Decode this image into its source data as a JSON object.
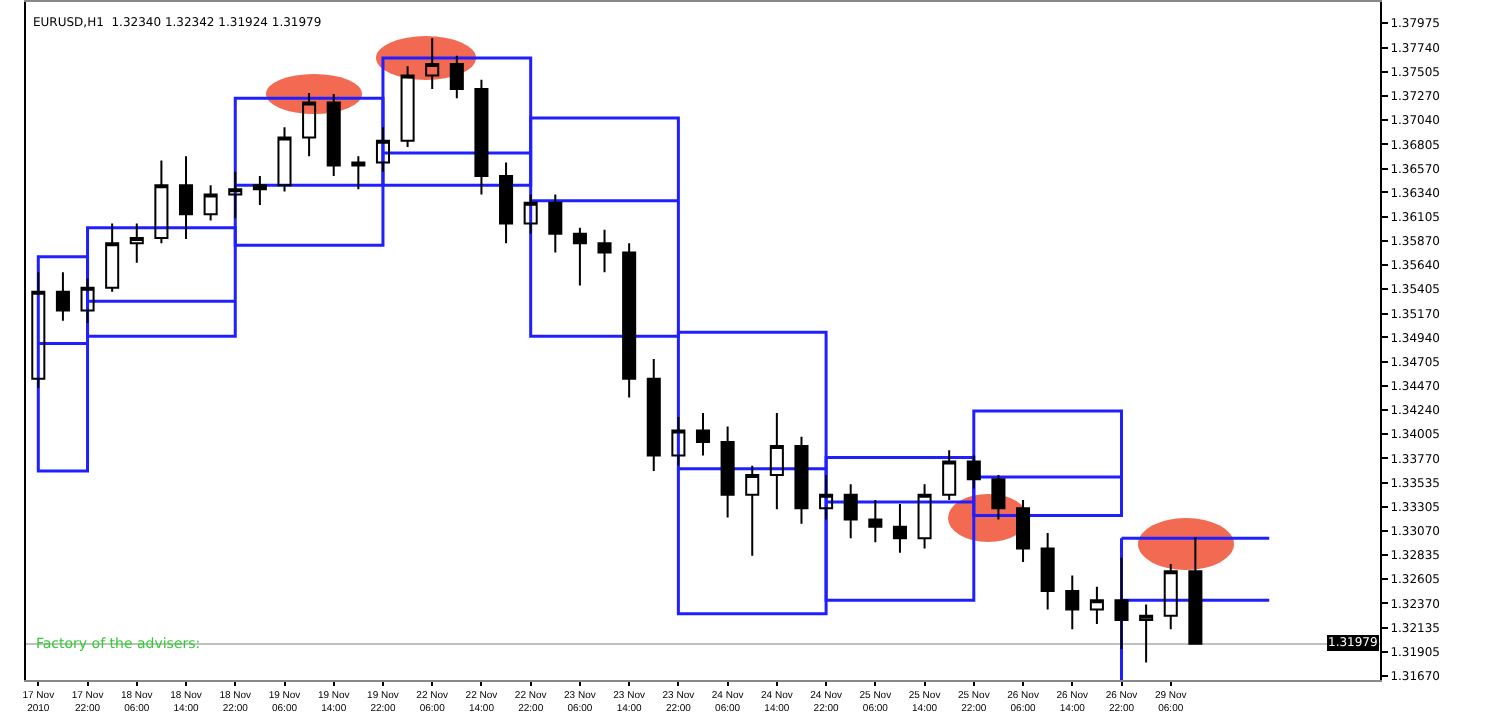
{
  "chart_data": {
    "type": "candlestick",
    "title": "EURUSD,H1  1.32340 1.32342 1.31924 1.31979",
    "categories": [
      "17 Nov 2010",
      null,
      "17 Nov 22:00",
      null,
      "18 Nov 06:00",
      null,
      "18 Nov 14:00",
      null,
      "18 Nov 22:00",
      null,
      "19 Nov 06:00",
      null,
      "19 Nov 14:00",
      null,
      "19 Nov 22:00",
      null,
      "22 Nov 06:00",
      null,
      "22 Nov 14:00",
      null,
      "22 Nov 22:00",
      null,
      "23 Nov 06:00",
      null,
      "23 Nov 14:00",
      null,
      "23 Nov 22:00",
      null,
      "24 Nov 06:00",
      null,
      "24 Nov 14:00",
      null,
      "24 Nov 22:00",
      null,
      "25 Nov 06:00",
      null,
      "25 Nov 14:00",
      null,
      "25 Nov 22:00",
      null,
      "26 Nov 06:00",
      null,
      "26 Nov 14:00",
      null,
      "26 Nov 22:00",
      null,
      "29 Nov 06:00",
      null,
      null,
      null,
      null,
      null,
      null,
      null,
      null
    ],
    "ohlc": [
      [
        1.3454,
        1.3557,
        1.3445,
        1.3538
      ],
      [
        1.3538,
        1.3557,
        1.351,
        1.352
      ],
      [
        1.352,
        1.3551,
        1.3508,
        1.3542
      ],
      [
        1.3542,
        1.3604,
        1.3538,
        1.3585
      ],
      [
        1.3585,
        1.3604,
        1.3566,
        1.359
      ],
      [
        1.359,
        1.3665,
        1.3585,
        1.3641
      ],
      [
        1.3641,
        1.3669,
        1.3589,
        1.3613
      ],
      [
        1.3613,
        1.3641,
        1.3607,
        1.3632
      ],
      [
        1.3632,
        1.3654,
        1.3609,
        1.3637
      ],
      [
        1.3637,
        1.365,
        1.3622,
        1.3641
      ],
      [
        1.3641,
        1.3697,
        1.3635,
        1.3687
      ],
      [
        1.3687,
        1.373,
        1.3669,
        1.3721
      ],
      [
        1.3721,
        1.3729,
        1.365,
        1.366
      ],
      [
        1.366,
        1.3669,
        1.3637,
        1.3663
      ],
      [
        1.3663,
        1.3697,
        1.3654,
        1.3684
      ],
      [
        1.3684,
        1.3756,
        1.3678,
        1.3747
      ],
      [
        1.3747,
        1.3783,
        1.3734,
        1.3758
      ],
      [
        1.3758,
        1.3766,
        1.3725,
        1.3734
      ],
      [
        1.3734,
        1.3743,
        1.3632,
        1.365
      ],
      [
        1.365,
        1.3663,
        1.3585,
        1.3604
      ],
      [
        1.3604,
        1.3632,
        1.3594,
        1.3624
      ],
      [
        1.3624,
        1.3632,
        1.3576,
        1.3594
      ],
      [
        1.3594,
        1.36,
        1.3544,
        1.3585
      ],
      [
        1.3585,
        1.3598,
        1.3557,
        1.3576
      ],
      [
        1.3576,
        1.3585,
        1.3436,
        1.3454
      ],
      [
        1.3454,
        1.3473,
        1.3365,
        1.338
      ],
      [
        1.338,
        1.3417,
        1.337,
        1.3404
      ],
      [
        1.3404,
        1.3421,
        1.338,
        1.3393
      ],
      [
        1.3393,
        1.3408,
        1.332,
        1.3342
      ],
      [
        1.3342,
        1.337,
        1.3283,
        1.3361
      ],
      [
        1.3361,
        1.3421,
        1.3328,
        1.3389
      ],
      [
        1.3389,
        1.3398,
        1.3314,
        1.3329
      ],
      [
        1.3329,
        1.3361,
        1.3318,
        1.3342
      ],
      [
        1.3342,
        1.3352,
        1.33,
        1.3318
      ],
      [
        1.3318,
        1.3337,
        1.3296,
        1.3311
      ],
      [
        1.3311,
        1.3333,
        1.3286,
        1.33
      ],
      [
        1.33,
        1.3352,
        1.329,
        1.3342
      ],
      [
        1.3342,
        1.3385,
        1.3337,
        1.3374
      ],
      [
        1.3374,
        1.338,
        1.3348,
        1.3357
      ],
      [
        1.3357,
        1.3361,
        1.3318,
        1.3329
      ],
      [
        1.3329,
        1.3337,
        1.3277,
        1.329
      ],
      [
        1.329,
        1.3305,
        1.3231,
        1.3249
      ],
      [
        1.3249,
        1.3264,
        1.3212,
        1.3231
      ],
      [
        1.3231,
        1.3253,
        1.3217,
        1.324
      ],
      [
        1.324,
        1.3281,
        1.3193,
        1.3221
      ],
      [
        1.3221,
        1.3236,
        1.318,
        1.3225
      ],
      [
        1.3225,
        1.3275,
        1.3212,
        1.3268
      ],
      [
        1.3268,
        1.3301,
        1.3197,
        1.3198
      ],
      null,
      null,
      null,
      null,
      null,
      null,
      null
    ],
    "ylim": [
      1.3163,
      1.3818
    ],
    "yticks": [
      {
        "value": 1.37975,
        "label": "1.37975"
      },
      {
        "value": 1.3774,
        "label": "1.37740"
      },
      {
        "value": 1.37505,
        "label": "1.37505"
      },
      {
        "value": 1.3727,
        "label": "1.37270"
      },
      {
        "value": 1.3704,
        "label": "1.37040"
      },
      {
        "value": 1.36805,
        "label": "1.36805"
      },
      {
        "value": 1.3657,
        "label": "1.36570"
      },
      {
        "value": 1.3634,
        "label": "1.36340"
      },
      {
        "value": 1.36105,
        "label": "1.36105"
      },
      {
        "value": 1.3587,
        "label": "1.35870"
      },
      {
        "value": 1.3564,
        "label": "1.35640"
      },
      {
        "value": 1.35405,
        "label": "1.35405"
      },
      {
        "value": 1.3517,
        "label": "1.35170"
      },
      {
        "value": 1.3494,
        "label": "1.34940"
      },
      {
        "value": 1.34705,
        "label": "1.34705"
      },
      {
        "value": 1.3447,
        "label": "1.34470"
      },
      {
        "value": 1.3424,
        "label": "1.34240"
      },
      {
        "value": 1.34005,
        "label": "1.34005"
      },
      {
        "value": 1.3377,
        "label": "1.33770"
      },
      {
        "value": 1.33535,
        "label": "1.33535"
      },
      {
        "value": 1.33305,
        "label": "1.33305"
      },
      {
        "value": 1.3307,
        "label": "1.33070"
      },
      {
        "value": 1.32835,
        "label": "1.32835"
      },
      {
        "value": 1.32605,
        "label": "1.32605"
      },
      {
        "value": 1.3237,
        "label": "1.32370"
      },
      {
        "value": 1.32135,
        "label": "1.32135"
      },
      {
        "value": 1.31905,
        "label": "1.31905"
      },
      {
        "value": 1.3167,
        "label": "1.31670"
      }
    ],
    "series": [
      {
        "type": "line",
        "color": "#2020ff",
        "x": [
          "17 Nov 2010",
          "17 Nov 2010",
          "17 Nov 22:00",
          "17 Nov 22:00",
          "17 Nov 2010",
          "17 Nov 2010",
          "17 Nov 22:00"
        ],
        "values": [
          1.3488,
          1.3572,
          1.3572,
          1.3365,
          1.3365,
          1.3488,
          1.3488
        ]
      },
      {
        "type": "line",
        "color": "#2020ff",
        "x": [
          "17 Nov 22:00",
          "17 Nov 22:00",
          "18 Nov 22:00",
          "18 Nov 22:00",
          "17 Nov 22:00",
          "17 Nov 22:00",
          "18 Nov 22:00"
        ],
        "values": [
          1.3529,
          1.36,
          1.36,
          1.3495,
          1.3495,
          1.3529,
          1.3529
        ]
      },
      {
        "type": "line",
        "color": "#2020ff",
        "x": [
          "18 Nov 22:00",
          "18 Nov 22:00",
          "19 Nov 22:00",
          "19 Nov 22:00",
          "18 Nov 22:00",
          "18 Nov 22:00",
          "19 Nov 22:00"
        ],
        "values": [
          1.3641,
          1.3725,
          1.3725,
          1.3583,
          1.3583,
          1.3641,
          1.3641
        ]
      },
      {
        "type": "line",
        "color": "#2020ff",
        "x": [
          "19 Nov 22:00",
          "19 Nov 22:00",
          "22 Nov 22:00",
          "22 Nov 22:00",
          "19 Nov 22:00",
          "19 Nov 22:00",
          "22 Nov 22:00"
        ],
        "values": [
          1.3672,
          1.3764,
          1.3764,
          1.3641,
          1.3641,
          1.3672,
          1.3672
        ]
      },
      {
        "type": "line",
        "color": "#2020ff",
        "x": [
          "22 Nov 22:00",
          "22 Nov 22:00",
          "23 Nov 22:00",
          "23 Nov 22:00",
          "22 Nov 22:00",
          "22 Nov 22:00",
          "23 Nov 22:00"
        ],
        "values": [
          1.3626,
          1.3706,
          1.3706,
          1.3495,
          1.3495,
          1.3626,
          1.3626
        ]
      },
      {
        "type": "line",
        "color": "#2020ff",
        "x": [
          "23 Nov 22:00",
          "23 Nov 22:00",
          "24 Nov 22:00",
          "24 Nov 22:00",
          "23 Nov 22:00",
          "23 Nov 22:00",
          "24 Nov 22:00"
        ],
        "values": [
          1.3367,
          1.3499,
          1.3499,
          1.3227,
          1.3227,
          1.3367,
          1.3367
        ]
      },
      {
        "type": "line",
        "color": "#2020ff",
        "x": [
          "24 Nov 22:00",
          "24 Nov 22:00",
          "25 Nov 22:00",
          "25 Nov 22:00",
          "24 Nov 22:00",
          "24 Nov 22:00",
          "25 Nov 22:00"
        ],
        "values": [
          1.3335,
          1.3378,
          1.3378,
          1.324,
          1.324,
          1.3335,
          1.3335
        ]
      },
      {
        "type": "line",
        "color": "#2020ff",
        "x": [
          "25 Nov 22:00",
          "25 Nov 22:00",
          "26 Nov 22:00",
          "26 Nov 22:00",
          "25 Nov 22:00",
          "25 Nov 22:00",
          "26 Nov 22:00"
        ],
        "values": [
          1.3359,
          1.3423,
          1.3423,
          1.3322,
          1.3322,
          1.3359,
          1.3359
        ]
      },
      {
        "type": "line",
        "color": "#2020ff",
        "x": [
          "26 Nov 22:00",
          "26 Nov 22:00"
        ],
        "values": [
          1.33,
          1.3163
        ]
      },
      {
        "type": "line",
        "color": "#2020ff",
        "values": [
          null,
          null,
          null,
          null,
          null,
          null,
          null,
          null,
          null,
          null,
          null,
          null,
          null,
          null,
          null,
          null,
          null,
          null,
          null,
          null,
          null,
          null,
          null,
          null,
          null,
          null,
          null,
          null,
          null,
          null,
          null,
          null,
          null,
          null,
          null,
          null,
          null,
          null,
          null,
          null,
          null,
          null,
          null,
          null,
          1.33,
          1.33,
          1.33,
          1.33,
          1.33,
          1.33,
          1.33,
          null,
          null,
          null,
          null
        ]
      },
      {
        "type": "line",
        "color": "#2020ff",
        "values": [
          null,
          null,
          null,
          null,
          null,
          null,
          null,
          null,
          null,
          null,
          null,
          null,
          null,
          null,
          null,
          null,
          null,
          null,
          null,
          null,
          null,
          null,
          null,
          null,
          null,
          null,
          null,
          null,
          null,
          null,
          null,
          null,
          null,
          null,
          null,
          null,
          null,
          null,
          null,
          null,
          null,
          null,
          null,
          null,
          1.324,
          1.324,
          1.324,
          1.324,
          1.324,
          1.324,
          1.324,
          null,
          null,
          null,
          null
        ]
      }
    ],
    "ref_lines": [
      {
        "axis": "y",
        "value": 1.31979,
        "label": "1.31979",
        "color": "#c0c0c0"
      }
    ],
    "annotations": [
      "Factory of the advisers:"
    ],
    "grid": false
  }
}
